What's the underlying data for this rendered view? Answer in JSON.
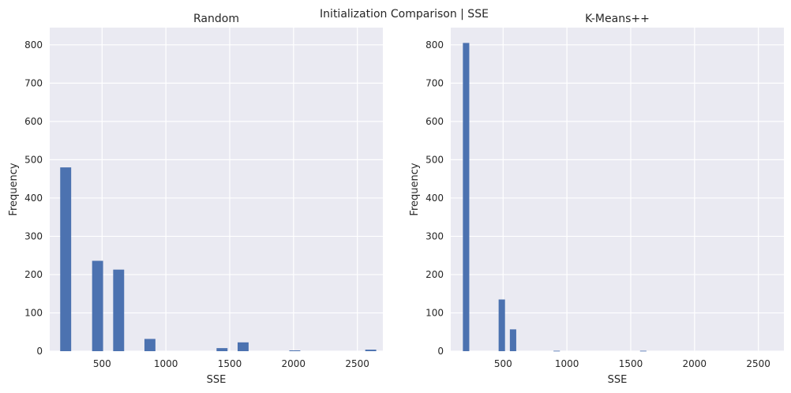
{
  "figure": {
    "title": "Initialization Comparison | SSE"
  },
  "colors": {
    "bar": "#4c72b0",
    "background": "#eaeaf2",
    "grid": "#ffffff",
    "text": "#262626"
  },
  "chart_data": [
    {
      "type": "bar",
      "title": "Random",
      "xlabel": "SSE",
      "ylabel": "Frequency",
      "xlim": [
        90,
        2700
      ],
      "ylim": [
        0,
        845
      ],
      "grid": true,
      "xticks": [
        500,
        1000,
        1500,
        2000,
        2500
      ],
      "yticks": [
        0,
        100,
        200,
        300,
        400,
        500,
        600,
        700,
        800
      ],
      "bin_width": 86,
      "bars": [
        {
          "x": 215,
          "value": 480
        },
        {
          "x": 465,
          "value": 236
        },
        {
          "x": 630,
          "value": 213
        },
        {
          "x": 875,
          "value": 32
        },
        {
          "x": 1440,
          "value": 8
        },
        {
          "x": 1605,
          "value": 23
        },
        {
          "x": 2010,
          "value": 2
        },
        {
          "x": 2605,
          "value": 4
        }
      ]
    },
    {
      "type": "bar",
      "title": "K-Means++",
      "xlabel": "SSE",
      "ylabel": "Frequency",
      "xlim": [
        90,
        2700
      ],
      "ylim": [
        0,
        845
      ],
      "grid": true,
      "xticks": [
        500,
        1000,
        1500,
        2000,
        2500
      ],
      "yticks": [
        0,
        100,
        200,
        300,
        400,
        500,
        600,
        700,
        800
      ],
      "bin_width": 50,
      "bars": [
        {
          "x": 210,
          "value": 805
        },
        {
          "x": 490,
          "value": 135
        },
        {
          "x": 578,
          "value": 57
        },
        {
          "x": 920,
          "value": 1
        },
        {
          "x": 1598,
          "value": 1
        }
      ]
    }
  ]
}
